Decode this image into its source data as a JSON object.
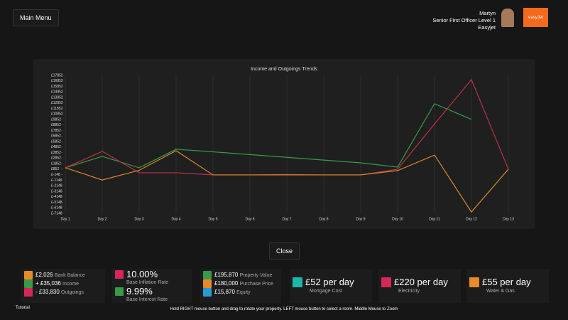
{
  "header": {
    "menu": "Main Menu",
    "name": "Martyn",
    "rank": "Senior First Officer Level 1",
    "airline": "Easyjet",
    "logo": "easyJet"
  },
  "chart_data": {
    "type": "line",
    "title": "Income and Outgoings Trends",
    "categories": [
      "Day 1",
      "Day 2",
      "Day 3",
      "Day 4",
      "Day 5",
      "Day 6",
      "Day 7",
      "Day 8",
      "Day 9",
      "Day 10",
      "Day 11",
      "Day 12",
      "Day 13"
    ],
    "series": [
      {
        "color": "#3a9a4a",
        "values": [
          1110,
          3170,
          1110,
          4460,
          4000,
          3500,
          3000,
          2500,
          2000,
          1230,
          12720,
          9880,
          null
        ]
      },
      {
        "color": "#c0304a",
        "values": [
          1110,
          4075,
          205,
          205,
          -182,
          -182,
          -100,
          -182,
          -182,
          850,
          9046,
          17081,
          852
        ]
      },
      {
        "color": "#d9892a",
        "values": [
          1110,
          -1100,
          650,
          4200,
          -182,
          -182,
          -182,
          -182,
          -182,
          600,
          3407,
          -6900,
          850
        ]
      }
    ],
    "ylim": [
      -7148,
      17852
    ],
    "yticks": [
      {
        "value": -7148,
        "label": "£-7148"
      },
      {
        "value": -6148,
        "label": "£-6148"
      },
      {
        "value": -5148,
        "label": "£-5148"
      },
      {
        "value": -4148,
        "label": "£-4148"
      },
      {
        "value": -3148,
        "label": "£-3148"
      },
      {
        "value": -2148,
        "label": "£-2148"
      },
      {
        "value": -1148,
        "label": "£-1148"
      },
      {
        "value": -148,
        "label": "£-148"
      },
      {
        "value": 852,
        "label": "£852"
      },
      {
        "value": 1852,
        "label": "£1852"
      },
      {
        "value": 2852,
        "label": "£2852"
      },
      {
        "value": 3852,
        "label": "£3852"
      },
      {
        "value": 4852,
        "label": "£4852"
      },
      {
        "value": 5852,
        "label": "£5852"
      },
      {
        "value": 6852,
        "label": "£6852"
      },
      {
        "value": 7852,
        "label": "£7852"
      },
      {
        "value": 8852,
        "label": "£8852"
      },
      {
        "value": 9852,
        "label": "£9852"
      },
      {
        "value": 10852,
        "label": "£10852"
      },
      {
        "value": 11852,
        "label": "£11852"
      },
      {
        "value": 12852,
        "label": "£12852"
      },
      {
        "value": 13852,
        "label": "£13852"
      },
      {
        "value": 14852,
        "label": "£14852"
      },
      {
        "value": 15852,
        "label": "£15852"
      },
      {
        "value": 16852,
        "label": "£16852"
      },
      {
        "value": 17852,
        "label": "£17852"
      }
    ],
    "grid": true
  },
  "close": "Close",
  "stats": {
    "balance": "£2,026",
    "balance_label": "Bank Balance",
    "income": "+ £35,036",
    "income_label": "Income",
    "outgoings": "- £33,830",
    "outgoings_label": "Outgoings",
    "inflation": "10.00%",
    "inflation_label": "Base Inflation Rate",
    "interest": "9.99%",
    "interest_label": "Base Interest Rate",
    "property": "£195,870",
    "property_label": "Property Value",
    "purchase": "£180,000",
    "purchase_label": "Purchase Price",
    "equity": "£15,870",
    "equity_label": "Equity",
    "mortgage": "£52 per day",
    "mortgage_label": "Mortgage Cost",
    "electricity": "£220 per day",
    "electricity_label": "Electricity",
    "water": "£55 per day",
    "water_label": "Water & Gas"
  },
  "footer": {
    "tutorial": "Tutorial",
    "hint": "Hold RIGHT mouse button and drag to rotate your property. LEFT mouse button to select a room. Middle Mouse to Zoom"
  }
}
